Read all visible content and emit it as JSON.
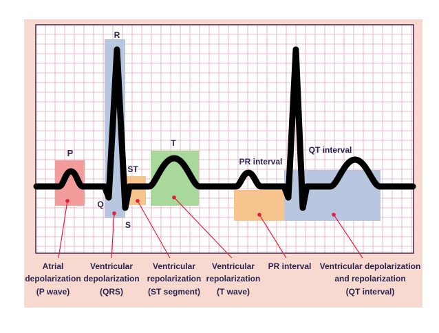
{
  "colors": {
    "panel": "#f7d9cf",
    "grid_bg": "#ffffff",
    "grid_line": "#e8a6b6",
    "border": "#4a1f52",
    "trace": "#000000",
    "pointer": "#e0203a",
    "text": "#2b2450",
    "p_box": "#f29c9c",
    "qrs_box": "#b8c6e0",
    "st_box": "#f7c48e",
    "t_box": "#a8d99a",
    "pr_box": "#f7c48e",
    "qt_box": "#b8c6e0"
  },
  "waves": {
    "p": "P",
    "q": "Q",
    "r": "R",
    "s": "S",
    "st": "ST",
    "t": "T",
    "pr_interval": "PR interval",
    "qt_interval": "QT interval"
  },
  "captions": {
    "atrial": [
      "Atrial",
      "depolarization",
      "(P wave)"
    ],
    "ventricular_dep": [
      "Ventricular",
      "depolarization",
      "(QRS)"
    ],
    "ventricular_rep_st": [
      "Ventricular",
      "repolarization",
      "(ST segment)"
    ],
    "ventricular_rep_t": [
      "Ventricular",
      "repolarization",
      "(T wave)"
    ],
    "pr": [
      "PR interval"
    ],
    "qt": [
      "Ventricular depolarization",
      "and repolarization",
      "(QT interval)"
    ]
  }
}
